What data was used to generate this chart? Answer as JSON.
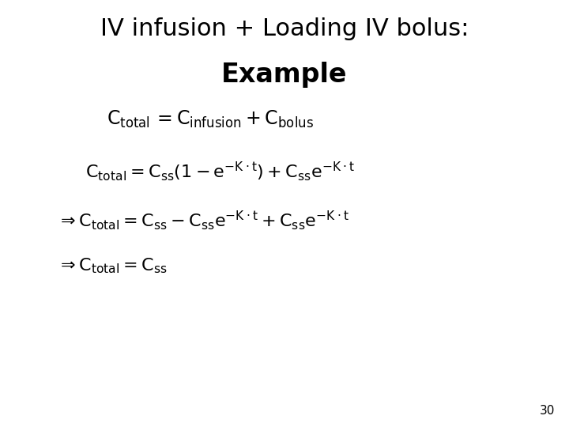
{
  "title_line1": "IV infusion + Loading IV bolus:",
  "title_line2": "Example",
  "subtitle_math": "$\\mathrm{C_{total}\\, =C_{infusion} + C_{bolus}}$",
  "eq1": "$\\mathrm{C_{total} = C_{ss}(1-e^{-K\\cdot t})+C_{ss}e^{-K\\cdot t}}$",
  "eq2": "$\\mathrm{\\Rightarrow C_{total} = C_{ss}-C_{ss}e^{-K\\cdot t}+C_{ss}e^{-K\\cdot t}}$",
  "eq3": "$\\mathrm{\\Rightarrow C_{total} = C_{ss}}$",
  "page_number": "30",
  "bg_color": "#ffffff",
  "text_color": "#000000",
  "title1_fontsize": 22,
  "title2_fontsize": 24,
  "subtitle_fontsize": 17,
  "eq_fontsize": 16,
  "page_fontsize": 11
}
